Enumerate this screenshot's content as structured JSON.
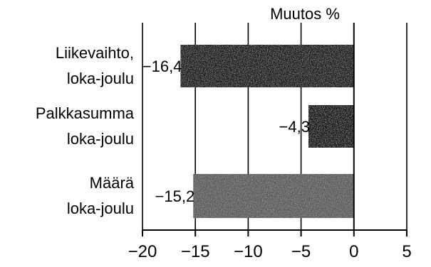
{
  "chart_data": {
    "type": "bar",
    "orientation": "horizontal",
    "title": "Muutos %",
    "xlabel": "",
    "ylabel": "",
    "categories": [
      [
        "Liikevaihto,",
        "loka-joulu"
      ],
      [
        "Palkkasumma",
        "loka-joulu"
      ],
      [
        "Määrä",
        "loka-joulu"
      ]
    ],
    "values": [
      -16.4,
      -4.3,
      -15.2
    ],
    "data_labels": [
      "−16,4",
      "−4,3",
      "−15,2"
    ],
    "xlim": [
      -20,
      5
    ],
    "xticks": [
      -20,
      -15,
      -10,
      -5,
      0,
      5
    ],
    "xtick_labels": [
      "−20",
      "−15",
      "−10",
      "−5",
      "0",
      "5"
    ],
    "grid": "vertical",
    "legend": "none",
    "colors": {
      "bar_1": "#1c1c1c",
      "bar_2": "#141414",
      "bar_3": "#5e5e5e",
      "axis": "#000000",
      "grid": "#000000"
    }
  }
}
